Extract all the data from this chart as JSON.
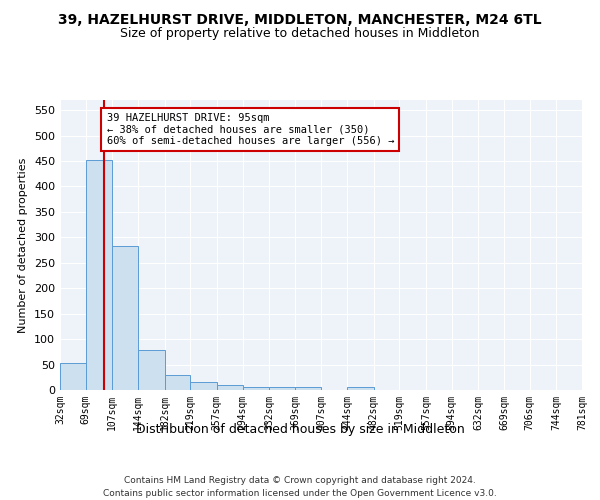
{
  "title": "39, HAZELHURST DRIVE, MIDDLETON, MANCHESTER, M24 6TL",
  "subtitle": "Size of property relative to detached houses in Middleton",
  "xlabel": "Distribution of detached houses by size in Middleton",
  "ylabel": "Number of detached properties",
  "bin_edges": [
    32,
    69,
    107,
    144,
    182,
    219,
    257,
    294,
    332,
    369,
    407,
    444,
    482,
    519,
    557,
    594,
    632,
    669,
    706,
    744,
    781
  ],
  "bar_heights": [
    53,
    452,
    283,
    78,
    30,
    15,
    10,
    5,
    5,
    6,
    0,
    5,
    0,
    0,
    0,
    0,
    0,
    0,
    0,
    0
  ],
  "bar_color": "#cce0f0",
  "bar_edge_color": "#5b9bd5",
  "property_size": 95,
  "vline_color": "#cc0000",
  "annotation_text": "39 HAZELHURST DRIVE: 95sqm\n← 38% of detached houses are smaller (350)\n60% of semi-detached houses are larger (556) →",
  "annotation_box_color": "white",
  "annotation_box_edge": "#cc0000",
  "ylim": [
    0,
    570
  ],
  "yticks": [
    0,
    50,
    100,
    150,
    200,
    250,
    300,
    350,
    400,
    450,
    500,
    550
  ],
  "background_color": "#eef3fa",
  "grid_color": "white",
  "footer_line1": "Contains HM Land Registry data © Crown copyright and database right 2024.",
  "footer_line2": "Contains public sector information licensed under the Open Government Licence v3.0.",
  "title_fontsize": 10,
  "subtitle_fontsize": 9,
  "tick_label_fontsize": 7,
  "ylabel_fontsize": 8,
  "xlabel_fontsize": 9
}
